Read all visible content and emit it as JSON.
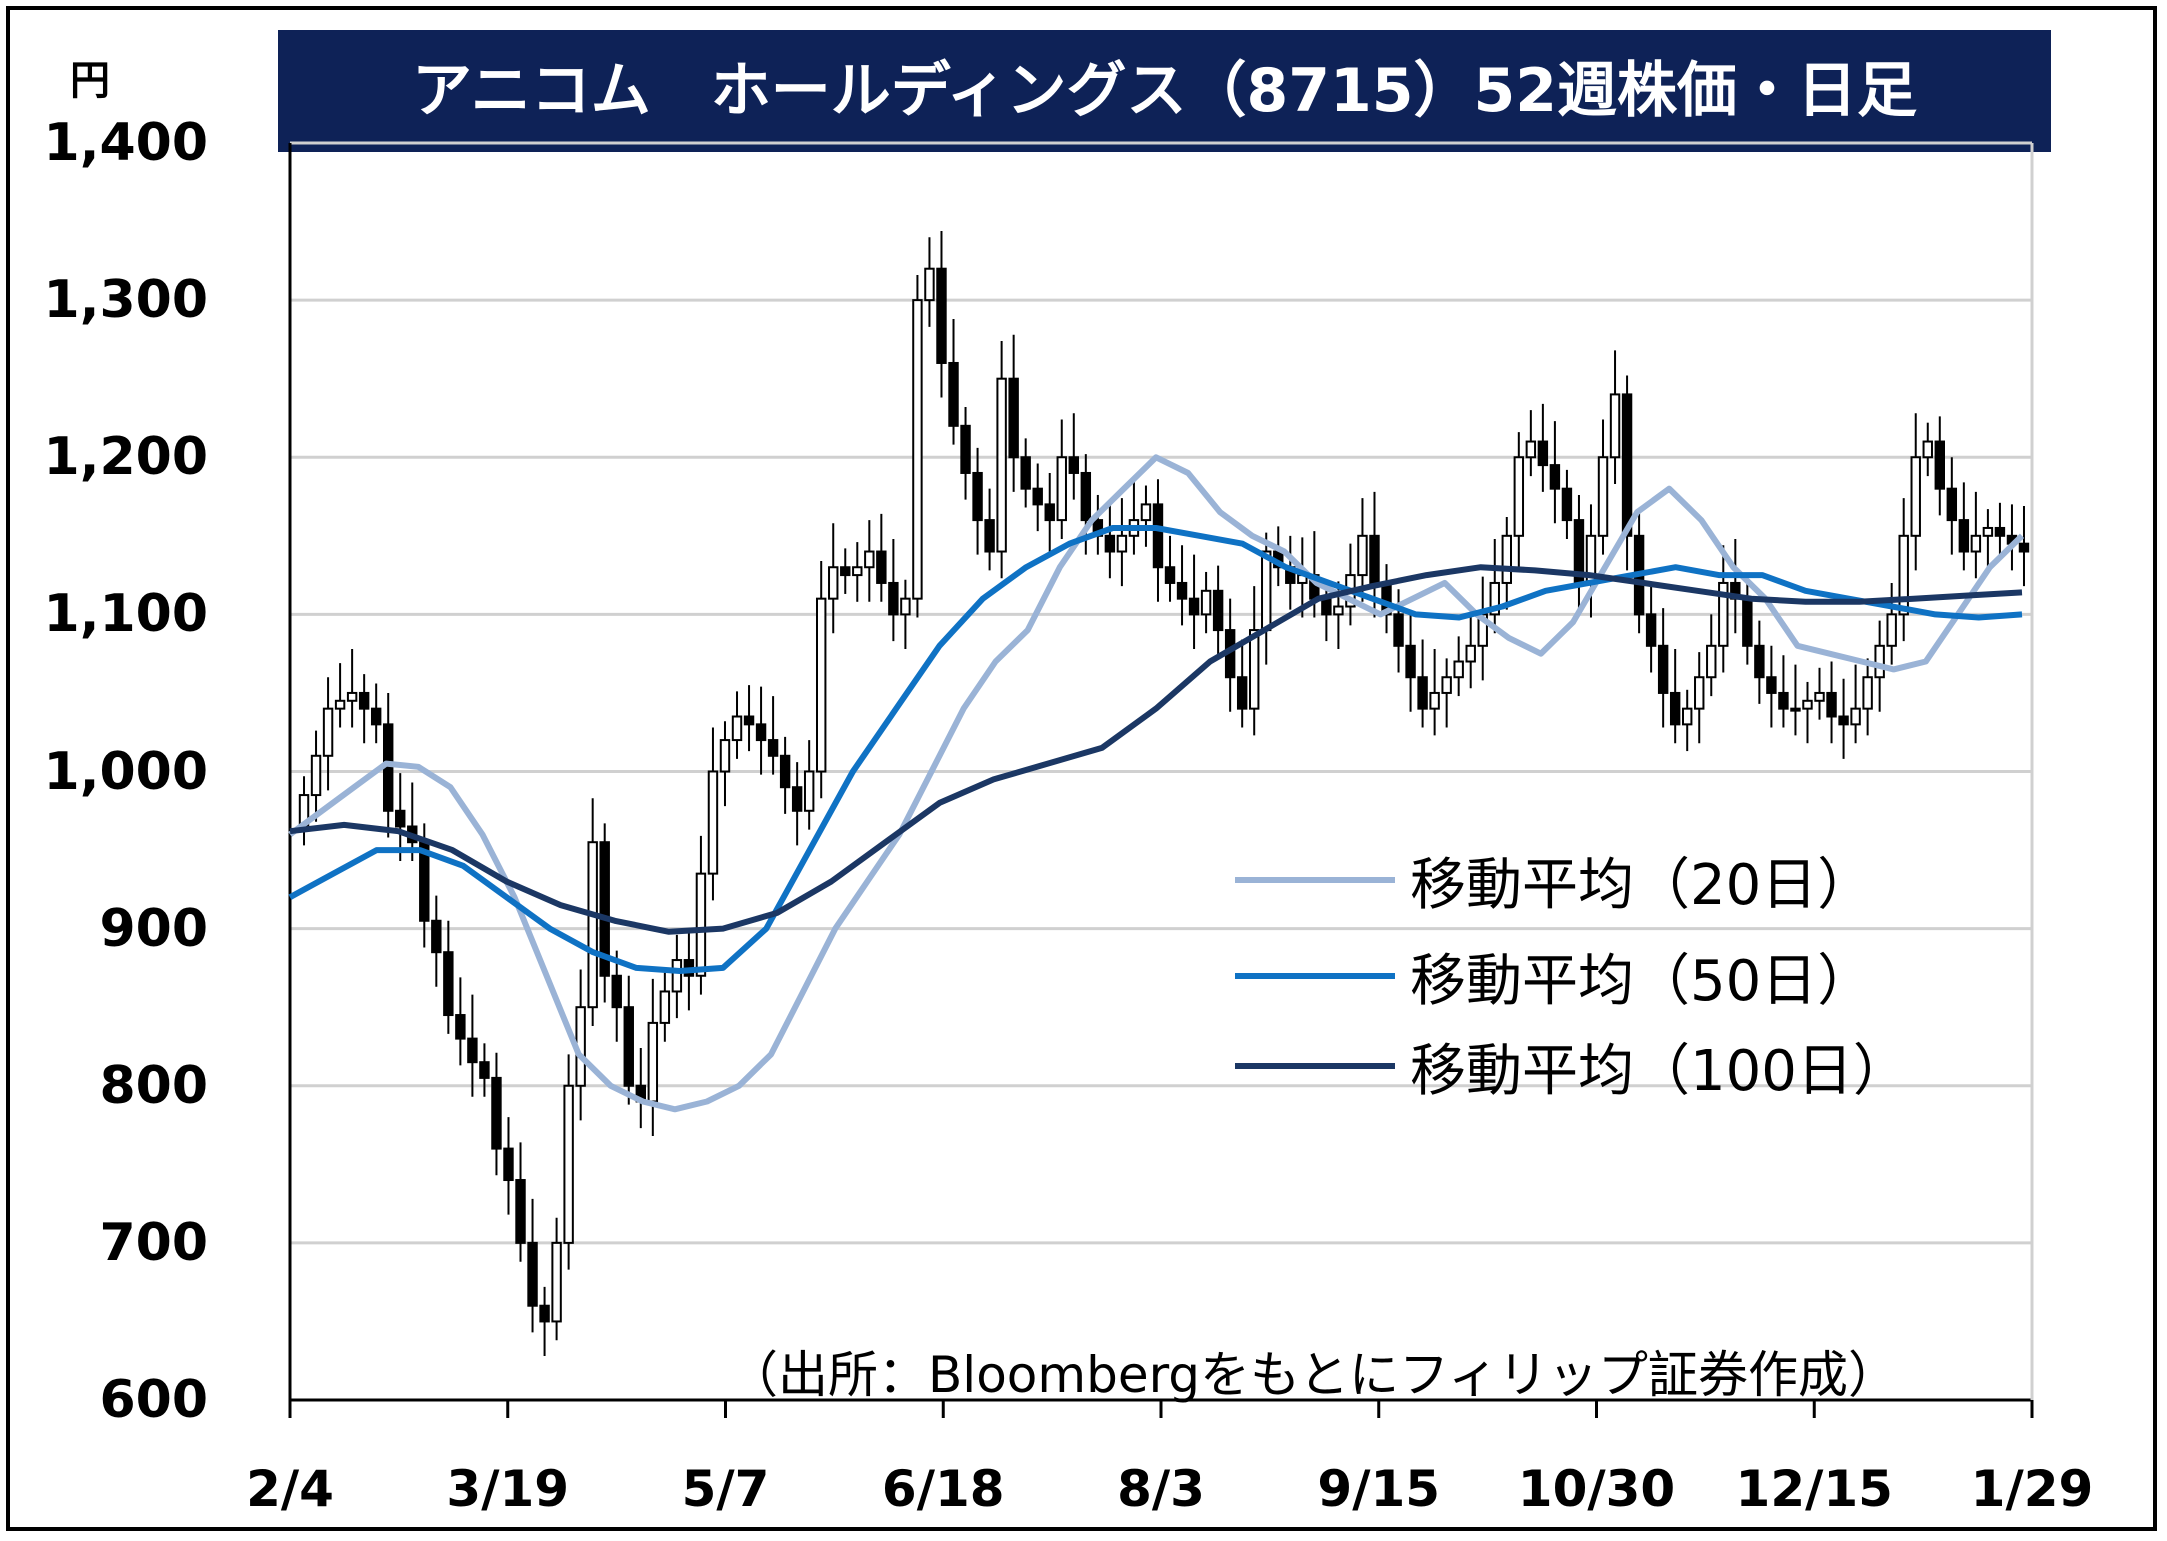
{
  "title": "アニコム　ホールディングス（8715）52週株価・日足",
  "unit_label": "円",
  "source_note": "（出所：Bloombergをもとにフィリップ証券作成）",
  "colors": {
    "title_bg": "#0e2257",
    "title_text": "#ffffff",
    "ma20": "#9ab3d6",
    "ma50": "#0f72c4",
    "ma100": "#1b3764",
    "grid": "#d0d0d0"
  },
  "chart_data": {
    "type": "candlestick",
    "ylim": [
      600,
      1400
    ],
    "yticks": [
      "600",
      "700",
      "800",
      "900",
      "1,000",
      "1,100",
      "1,200",
      "1,300",
      "1,400"
    ],
    "ytick_values": [
      600,
      700,
      800,
      900,
      1000,
      1100,
      1200,
      1300,
      1400
    ],
    "xticks": [
      "2/4",
      "3/19",
      "5/7",
      "6/18",
      "8/3",
      "9/15",
      "10/30",
      "12/15",
      "1/29"
    ],
    "grid": true,
    "legend_position": "center-right",
    "candles_close": [
      985,
      1010,
      1040,
      1045,
      1050,
      1040,
      1030,
      975,
      965,
      955,
      905,
      885,
      845,
      830,
      815,
      805,
      760,
      740,
      700,
      660,
      650,
      700,
      800,
      850,
      955,
      870,
      850,
      800,
      790,
      840,
      860,
      880,
      870,
      935,
      1000,
      1020,
      1035,
      1030,
      1020,
      1010,
      990,
      975,
      1000,
      1110,
      1130,
      1125,
      1130,
      1140,
      1120,
      1100,
      1110,
      1300,
      1320,
      1260,
      1220,
      1190,
      1160,
      1140,
      1250,
      1200,
      1180,
      1170,
      1160,
      1200,
      1190,
      1160,
      1150,
      1140,
      1150,
      1160,
      1170,
      1130,
      1120,
      1110,
      1100,
      1115,
      1090,
      1060,
      1040,
      1090,
      1140,
      1130,
      1120,
      1125,
      1110,
      1100,
      1105,
      1125,
      1150,
      1120,
      1100,
      1080,
      1060,
      1040,
      1050,
      1060,
      1070,
      1080,
      1100,
      1120,
      1150,
      1200,
      1210,
      1195,
      1180,
      1160,
      1120,
      1150,
      1200,
      1240,
      1150,
      1100,
      1080,
      1050,
      1030,
      1040,
      1060,
      1080,
      1120,
      1110,
      1080,
      1060,
      1050,
      1040,
      1040,
      1045,
      1050,
      1035,
      1030,
      1040,
      1060,
      1080,
      1100,
      1150,
      1200,
      1210,
      1180,
      1160,
      1140,
      1150,
      1155,
      1150,
      1145,
      1140
    ],
    "series": [
      {
        "name": "移動平均（20日）",
        "color": "#9ab3d6",
        "values": [
          960,
          975,
          990,
          1005,
          1003,
          990,
          960,
          920,
          870,
          820,
          800,
          790,
          785,
          790,
          800,
          820,
          860,
          900,
          930,
          960,
          1000,
          1040,
          1070,
          1090,
          1130,
          1160,
          1180,
          1200,
          1190,
          1165,
          1150,
          1140,
          1120,
          1110,
          1100,
          1110,
          1120,
          1100,
          1085,
          1075,
          1095,
          1130,
          1165,
          1180,
          1160,
          1130,
          1110,
          1080,
          1075,
          1070,
          1065,
          1070,
          1100,
          1130,
          1150
        ]
      },
      {
        "name": "移動平均（50日）",
        "color": "#0f72c4",
        "values": [
          920,
          935,
          950,
          950,
          940,
          920,
          900,
          885,
          875,
          873,
          875,
          900,
          950,
          1000,
          1040,
          1080,
          1110,
          1130,
          1145,
          1155,
          1155,
          1150,
          1145,
          1130,
          1120,
          1110,
          1100,
          1098,
          1105,
          1115,
          1120,
          1125,
          1130,
          1125,
          1125,
          1115,
          1110,
          1105,
          1100,
          1098,
          1100
        ]
      },
      {
        "name": "移動平均（100日）",
        "color": "#1b3764",
        "values": [
          962,
          966,
          962,
          950,
          930,
          915,
          905,
          898,
          900,
          910,
          930,
          955,
          980,
          995,
          1005,
          1015,
          1040,
          1070,
          1090,
          1110,
          1118,
          1125,
          1130,
          1128,
          1125,
          1120,
          1115,
          1110,
          1108,
          1108,
          1110,
          1112,
          1114
        ]
      }
    ]
  }
}
